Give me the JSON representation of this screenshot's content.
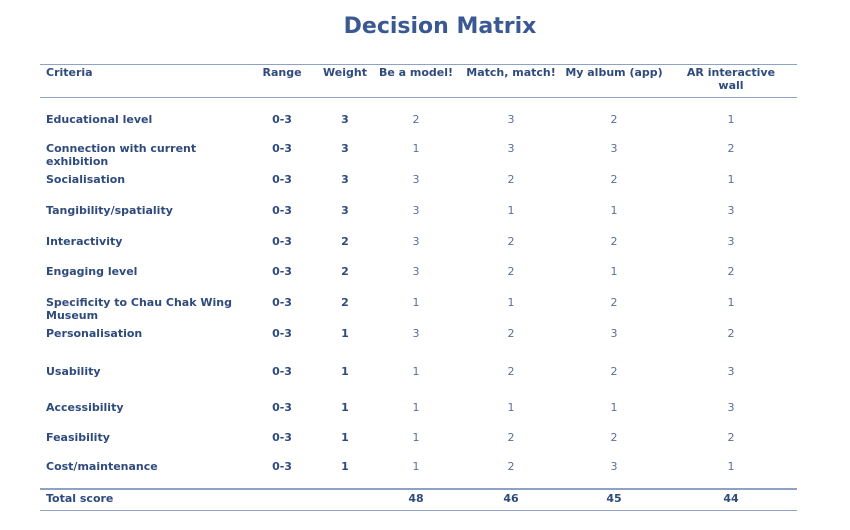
{
  "title": "Decision Matrix",
  "headers": {
    "criteria": "Criteria",
    "range": "Range",
    "weight": "Weight",
    "opt1": "Be a model!",
    "opt2": "Match, match!",
    "opt3": "My album (app)",
    "opt4": "AR interactive wall"
  },
  "rows": [
    {
      "criteria": "Educational level",
      "range": "0-3",
      "weight": "3",
      "s1": "2",
      "s2": "3",
      "s3": "2",
      "s4": "1"
    },
    {
      "criteria": "Connection with current exhibition",
      "range": "0-3",
      "weight": "3",
      "s1": "1",
      "s2": "3",
      "s3": "3",
      "s4": "2"
    },
    {
      "criteria": "Socialisation",
      "range": "0-3",
      "weight": "3",
      "s1": "3",
      "s2": "2",
      "s3": "2",
      "s4": "1"
    },
    {
      "criteria": "Tangibility/spatiality",
      "range": "0-3",
      "weight": "3",
      "s1": "3",
      "s2": "1",
      "s3": "1",
      "s4": "3"
    },
    {
      "criteria": "Interactivity",
      "range": "0-3",
      "weight": "2",
      "s1": "3",
      "s2": "2",
      "s3": "2",
      "s4": "3"
    },
    {
      "criteria": "Engaging level",
      "range": "0-3",
      "weight": "2",
      "s1": "3",
      "s2": "2",
      "s3": "1",
      "s4": "2"
    },
    {
      "criteria": "Specificity to Chau Chak Wing Museum",
      "range": "0-3",
      "weight": "2",
      "s1": "1",
      "s2": "1",
      "s3": "2",
      "s4": "1"
    },
    {
      "criteria": "Personalisation",
      "range": "0-3",
      "weight": "1",
      "s1": "3",
      "s2": "2",
      "s3": "3",
      "s4": "2"
    },
    {
      "criteria": "Usability",
      "range": "0-3",
      "weight": "1",
      "s1": "1",
      "s2": "2",
      "s3": "2",
      "s4": "3"
    },
    {
      "criteria": "Accessibility",
      "range": "0-3",
      "weight": "1",
      "s1": "1",
      "s2": "1",
      "s3": "1",
      "s4": "3"
    },
    {
      "criteria": "Feasibility",
      "range": "0-3",
      "weight": "1",
      "s1": "1",
      "s2": "2",
      "s3": "2",
      "s4": "2"
    },
    {
      "criteria": "Cost/maintenance",
      "range": "0-3",
      "weight": "1",
      "s1": "1",
      "s2": "2",
      "s3": "3",
      "s4": "1"
    }
  ],
  "total": {
    "label": "Total score",
    "s1": "48",
    "s2": "46",
    "s3": "45",
    "s4": "44"
  },
  "colors": {
    "title": "#3a5892",
    "text": "#2f4a7d",
    "score_text": "#5a6f99",
    "rule": "#8ea3c4"
  }
}
